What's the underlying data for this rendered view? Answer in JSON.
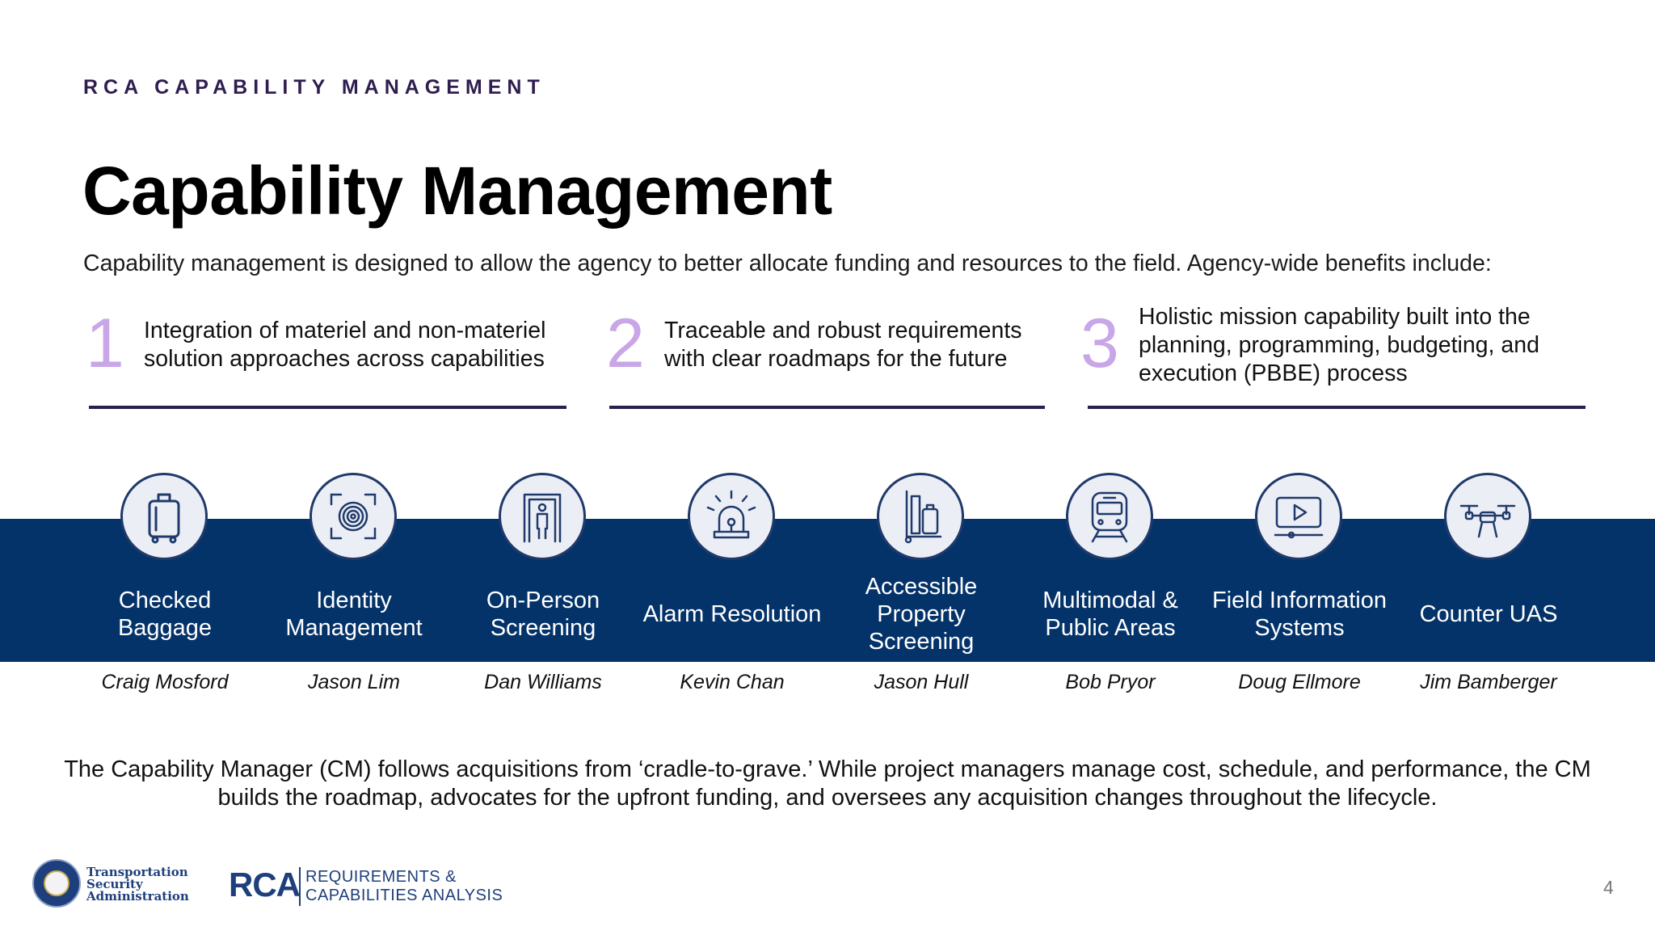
{
  "header": {
    "eyebrow": "RCA CAPABILITY MANAGEMENT",
    "title": "Capability Management",
    "subtitle": "Capability management is designed to allow the agency to better allocate funding and resources to the field. Agency-wide benefits include:"
  },
  "benefits": [
    {
      "number": "1",
      "text": "Integration of materiel and non-materiel solution approaches across capabilities"
    },
    {
      "number": "2",
      "text": "Traceable and robust requirements with clear roadmaps for the future"
    },
    {
      "number": "3",
      "text": "Holistic mission capability built into the planning, programming, budgeting, and execution (PBBE) process"
    }
  ],
  "capabilities": [
    {
      "label": "Checked Baggage",
      "owner": "Craig Mosford",
      "icon": "suitcase-icon"
    },
    {
      "label": "Identity Management",
      "owner": "Jason Lim",
      "icon": "fingerprint-icon"
    },
    {
      "label": "On-Person Screening",
      "owner": "Dan Williams",
      "icon": "body-scanner-icon"
    },
    {
      "label": "Alarm Resolution",
      "owner": "Kevin Chan",
      "icon": "alarm-light-icon"
    },
    {
      "label": "Accessible Property Screening",
      "owner": "Jason Hull",
      "icon": "luggage-cart-icon"
    },
    {
      "label": "Multimodal & Public Areas",
      "owner": "Bob Pryor",
      "icon": "train-icon"
    },
    {
      "label": "Field Information Systems",
      "owner": "Doug Ellmore",
      "icon": "video-player-icon"
    },
    {
      "label": "Counter UAS",
      "owner": "Jim Bamberger",
      "icon": "drone-icon"
    }
  ],
  "closing": "The Capability Manager (CM) follows acquisitions from ‘cradle-to-grave.’ While project managers manage cost, schedule, and performance, the CM builds the roadmap, advocates for the upfront funding, and oversees any acquisition changes throughout the lifecycle.",
  "footer": {
    "tsa_line1": "Transportation",
    "tsa_line2": "Security",
    "tsa_line3": "Administration",
    "rca_mark": "RCA",
    "rca_line1": "REQUIREMENTS &",
    "rca_line2": "CAPABILITIES ANALYSIS",
    "page_number": "4"
  },
  "colors": {
    "band": "#04336a",
    "accent_number": "#c9a6e8",
    "rule": "#2a1f4f",
    "eyebrow": "#2f1d4f"
  }
}
